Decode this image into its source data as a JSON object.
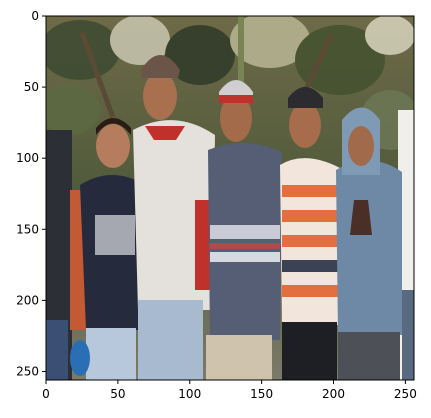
{
  "image": {
    "description_layer": "photo",
    "x_ticks": [
      "0",
      "50",
      "100",
      "150",
      "200",
      "250"
    ],
    "y_ticks": [
      "0",
      "50",
      "100",
      "150",
      "200",
      "250"
    ],
    "x_range": [
      0,
      256
    ],
    "y_range": [
      0,
      256
    ],
    "colors": {
      "frame": "#000000",
      "background": "#ffffff",
      "foliage_dark": "#3d4a32",
      "foliage_light": "#c9c7b0",
      "skin": "#b07a5a",
      "shirt_navy": "#252b3c",
      "shirt_white": "#e4e1dc",
      "shirt_red": "#c0312c",
      "shirt_striped_orange": "#e36e3f",
      "hoodie_blue": "#6d89a6",
      "jeans": "#a8bad0"
    }
  }
}
